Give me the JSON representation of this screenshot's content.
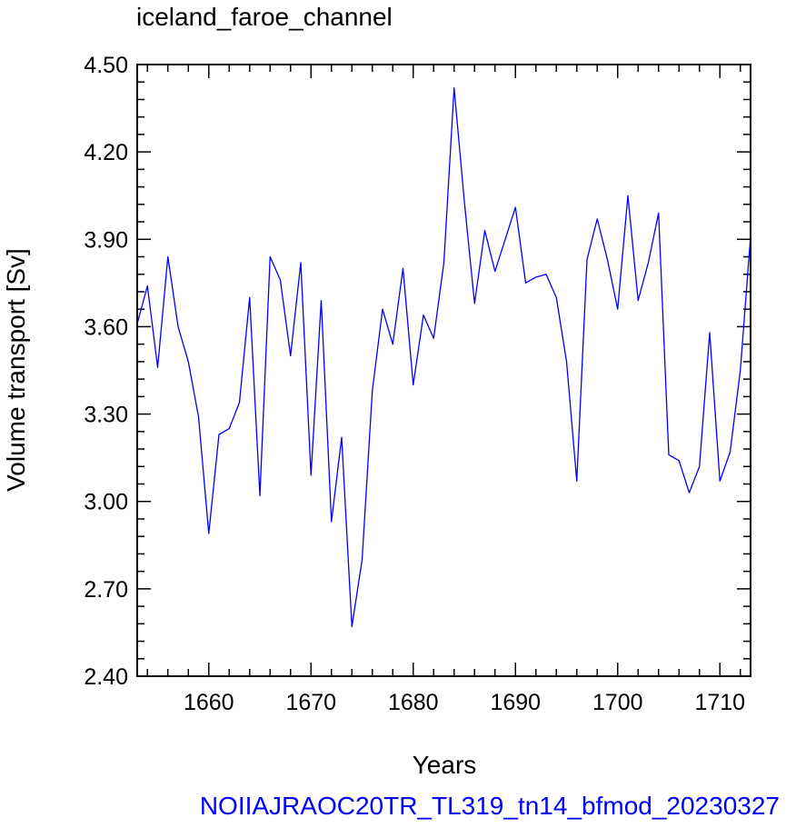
{
  "chart_data": {
    "type": "line",
    "title": "iceland_faroe_channel",
    "xlabel": "Years",
    "ylabel": "Volume transport [Sv]",
    "footer": "NOIIAJRAOC20TR_TL319_tn14_bfmod_20230327",
    "xlim": [
      1653,
      1713
    ],
    "ylim": [
      2.4,
      4.5
    ],
    "x_ticks": [
      1660,
      1670,
      1680,
      1690,
      1700,
      1710
    ],
    "x_tick_labels": [
      "1660",
      "1670",
      "1680",
      "1690",
      "1700",
      "1710"
    ],
    "y_ticks": [
      2.4,
      2.7,
      3.0,
      3.3,
      3.6,
      3.9,
      4.2,
      4.5
    ],
    "y_tick_labels": [
      "2.40",
      "2.70",
      "3.00",
      "3.30",
      "3.60",
      "3.90",
      "4.20",
      "4.50"
    ],
    "x_minor_step": 2,
    "y_minor_step": 0.06,
    "grid": false,
    "line_color": "#0000ff",
    "series": [
      {
        "x": [
          1653,
          1654,
          1655,
          1656,
          1657,
          1658,
          1659,
          1660,
          1661,
          1662,
          1663,
          1664,
          1665,
          1666,
          1667,
          1668,
          1669,
          1670,
          1671,
          1672,
          1673,
          1674,
          1675,
          1676,
          1677,
          1678,
          1679,
          1680,
          1681,
          1682,
          1683,
          1684,
          1685,
          1686,
          1687,
          1688,
          1689,
          1690,
          1691,
          1692,
          1693,
          1694,
          1695,
          1696,
          1697,
          1698,
          1699,
          1700,
          1701,
          1702,
          1703,
          1704,
          1705,
          1706,
          1707,
          1708,
          1709,
          1710,
          1711,
          1712,
          1713
        ],
        "values": [
          3.61,
          3.74,
          3.46,
          3.84,
          3.6,
          3.48,
          3.29,
          2.89,
          3.23,
          3.25,
          3.34,
          3.7,
          3.02,
          3.84,
          3.76,
          3.5,
          3.82,
          3.09,
          3.69,
          2.93,
          3.22,
          2.57,
          2.8,
          3.38,
          3.66,
          3.54,
          3.8,
          3.4,
          3.64,
          3.56,
          3.82,
          4.42,
          4.03,
          3.68,
          3.93,
          3.79,
          3.9,
          4.01,
          3.75,
          3.77,
          3.78,
          3.7,
          3.48,
          3.07,
          3.83,
          3.97,
          3.83,
          3.66,
          4.05,
          3.69,
          3.82,
          3.99,
          3.16,
          3.14,
          3.03,
          3.12,
          3.58,
          3.07,
          3.17,
          3.45,
          3.91
        ]
      }
    ]
  }
}
